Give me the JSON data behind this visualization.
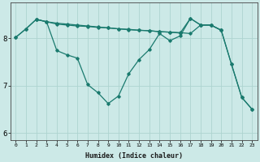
{
  "xlabel": "Humidex (Indice chaleur)",
  "background_color": "#cce9e7",
  "line_color": "#1a7a6e",
  "grid_color": "#aed4d0",
  "xlim": [
    -0.5,
    23.5
  ],
  "ylim": [
    5.85,
    8.75
  ],
  "yticks": [
    6,
    7,
    8
  ],
  "xticks": [
    0,
    1,
    2,
    3,
    4,
    5,
    6,
    7,
    8,
    9,
    10,
    11,
    12,
    13,
    14,
    15,
    16,
    17,
    18,
    19,
    20,
    21,
    22,
    23
  ],
  "series1_x": [
    0,
    1,
    2,
    3,
    4,
    5,
    6,
    7,
    8,
    9,
    10,
    11,
    12,
    13,
    14,
    15,
    16,
    17,
    18,
    19,
    20,
    21,
    22,
    23
  ],
  "series1_y": [
    8.02,
    8.2,
    8.4,
    8.35,
    7.74,
    7.65,
    7.58,
    7.02,
    6.85,
    6.62,
    6.78,
    7.25,
    7.55,
    7.76,
    8.1,
    7.95,
    8.05,
    8.42,
    8.28,
    8.28,
    8.17,
    7.45,
    6.75,
    6.5
  ],
  "series2_x": [
    0,
    1,
    2,
    3,
    4,
    5,
    6,
    7,
    8,
    9,
    10,
    11,
    12,
    13,
    14,
    15,
    16,
    17,
    18,
    19,
    20
  ],
  "series2_y": [
    8.02,
    8.2,
    8.4,
    8.35,
    8.32,
    8.3,
    8.28,
    8.26,
    8.24,
    8.22,
    8.2,
    8.18,
    8.17,
    8.16,
    8.14,
    8.13,
    8.12,
    8.1,
    8.28,
    8.28,
    8.17
  ],
  "series3_x": [
    2,
    3,
    4,
    5,
    6,
    7,
    8,
    9,
    10,
    11,
    12,
    13,
    14,
    15,
    16,
    17,
    18,
    19,
    20,
    21,
    22,
    23
  ],
  "series3_y": [
    8.4,
    8.35,
    8.3,
    8.28,
    8.26,
    8.25,
    8.23,
    8.22,
    8.2,
    8.19,
    8.17,
    8.16,
    8.14,
    8.13,
    8.11,
    8.42,
    8.28,
    8.28,
    8.17,
    7.45,
    6.75,
    6.5
  ]
}
